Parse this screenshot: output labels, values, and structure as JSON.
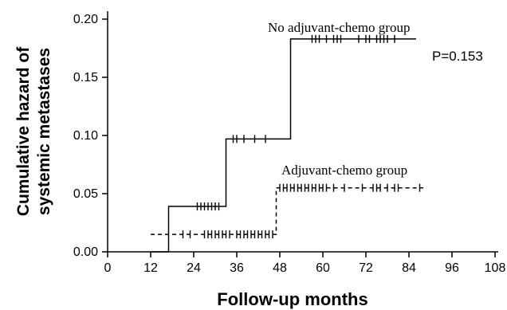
{
  "chart_data": {
    "type": "line",
    "title": "",
    "xlabel": "Follow-up months",
    "ylabel": "Cumulative hazard of systemic metastases",
    "ylabel_lines": [
      "Cumulative hazard of",
      "systemic metastases"
    ],
    "xlim": [
      0,
      108
    ],
    "ylim": [
      0,
      0.2
    ],
    "x_ticks": [
      0,
      12,
      24,
      36,
      48,
      60,
      72,
      84,
      96,
      108
    ],
    "x_tick_labels": [
      "0",
      "12",
      "24",
      "36",
      "48",
      "60",
      "72",
      "84",
      "96",
      "108"
    ],
    "y_ticks": [
      0,
      0.05,
      0.1,
      0.15,
      0.2
    ],
    "y_tick_labels": [
      "0.00",
      "0.05",
      "0.10",
      "0.15",
      "0.20"
    ],
    "grid": false,
    "annotation": "P=0.153",
    "series": [
      {
        "name": "No adjuvant-chemo group",
        "line_style": "solid",
        "steps": [
          [
            12,
            0
          ],
          [
            17,
            0.039
          ],
          [
            33,
            0.097
          ],
          [
            51,
            0.183
          ],
          [
            86,
            0.183
          ]
        ],
        "censored_x": [
          25,
          26,
          27,
          28,
          29,
          30,
          31,
          35,
          36,
          38,
          41,
          44,
          57,
          58,
          59,
          61,
          63,
          64,
          65,
          70,
          72,
          73,
          75,
          76,
          77,
          78,
          80
        ]
      },
      {
        "name": "Adjuvant-chemo group",
        "line_style": "dashed",
        "steps": [
          [
            12,
            0.015
          ],
          [
            47,
            0.055
          ],
          [
            88,
            0.055
          ]
        ],
        "censored_x": [
          21,
          23,
          27,
          28,
          29,
          30,
          31,
          32,
          33,
          34,
          36,
          37,
          38,
          39,
          40,
          41,
          42,
          43,
          44,
          45,
          46,
          48,
          49,
          50,
          51,
          52,
          53,
          54,
          55,
          56,
          57,
          58,
          59,
          60,
          61,
          63,
          66,
          71,
          74,
          75,
          76,
          78,
          80,
          81,
          87
        ]
      }
    ]
  }
}
